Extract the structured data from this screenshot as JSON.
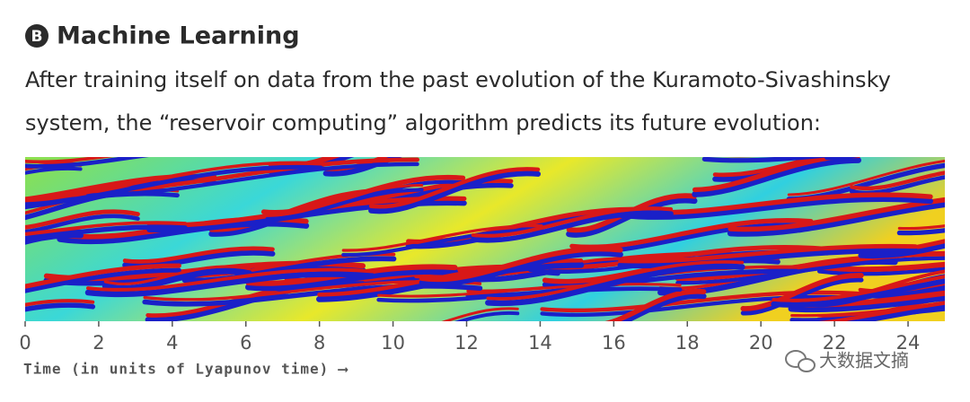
{
  "panel": "B",
  "title": "Machine Learning",
  "description": [
    "After training itself on data from the past evolution of the Kuramoto-Sivashinsky",
    "system, the “reservoir computing” algorithm predicts its future evolution:"
  ],
  "chart_data": {
    "type": "heatmap",
    "xlabel": "Time (in units of Lyapunov time) ⟶",
    "xlim": [
      0,
      25
    ],
    "xticks": [
      0,
      2,
      4,
      6,
      8,
      10,
      12,
      14,
      16,
      18,
      20,
      22,
      24
    ]
  },
  "watermark": "大数据文摘"
}
